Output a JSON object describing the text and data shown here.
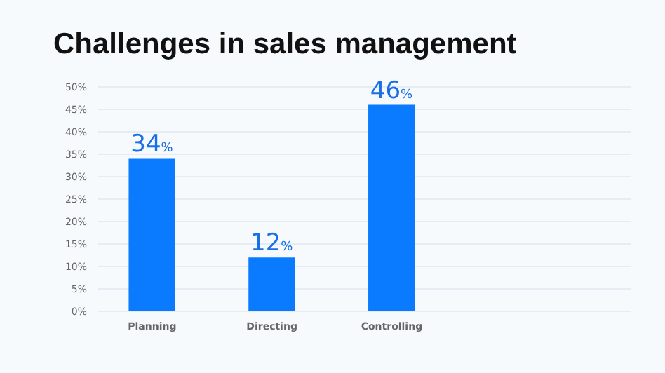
{
  "chart_data": {
    "type": "bar",
    "title": "Challenges in sales management",
    "categories": [
      "Planning",
      "Directing",
      "Controlling"
    ],
    "values": [
      34,
      12,
      46
    ],
    "value_labels": [
      "34%",
      "12%",
      "46%"
    ],
    "color": "#0a7bff",
    "ylim": [
      0,
      50
    ],
    "yticks": [
      {
        "value": 0,
        "label": "0%"
      },
      {
        "value": 5,
        "label": "5%"
      },
      {
        "value": 10,
        "label": "10%"
      },
      {
        "value": 15,
        "label": "15%"
      },
      {
        "value": 20,
        "label": "20%"
      },
      {
        "value": 25,
        "label": "25%"
      },
      {
        "value": 30,
        "label": "30%"
      },
      {
        "value": 35,
        "label": "35%"
      },
      {
        "value": 40,
        "label": "40%"
      },
      {
        "value": 45,
        "label": "45%"
      },
      {
        "value": 50,
        "label": "50%"
      }
    ],
    "grid": "y",
    "legend": false
  }
}
